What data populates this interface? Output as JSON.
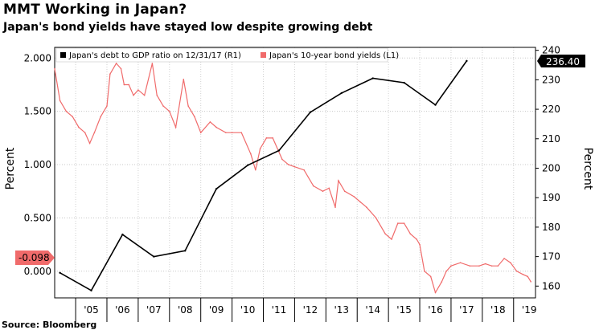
{
  "header": {
    "title": "MMT Working in Japan?",
    "subtitle": "Japan's bond yields have stayed low despite growing debt"
  },
  "footer": {
    "source": "Source: Bloomberg"
  },
  "chart_data": {
    "type": "line",
    "title": "MMT Working in Japan?",
    "subtitle": "Japan's bond yields have stayed low despite growing debt",
    "x_categories": [
      "'05",
      "'06",
      "'07",
      "'08",
      "'09",
      "'10",
      "'11",
      "'12",
      "'13",
      "'14",
      "'15",
      "'16",
      "'17",
      "'18",
      "'19"
    ],
    "xlim": [
      2004.33,
      2019.7
    ],
    "y_left": {
      "label": "Percent",
      "ticks": [
        "2.000",
        "1.500",
        "1.000",
        "0.500",
        "0.000"
      ],
      "ylim": [
        -0.25,
        2.1
      ]
    },
    "y_right": {
      "label": "Percent",
      "ticks": [
        "240",
        "230",
        "220",
        "210",
        "200",
        "190",
        "180",
        "170",
        "160"
      ],
      "ylim": [
        156,
        241
      ]
    },
    "legend": [
      {
        "label": "Japan's debt to GDP ratio on 12/31/17 (R1)",
        "color": "#000000"
      },
      {
        "label": "Japan's 10-year bond yields (L1)",
        "color": "#f06b6b"
      }
    ],
    "last_value_labels": {
      "debt": "236.40",
      "yield": "-0.098"
    },
    "series": [
      {
        "name": "Japan's debt to GDP ratio on 12/31/17 (R1)",
        "axis": "right",
        "color": "#000000",
        "x": [
          2004.5,
          2005.5,
          2006.5,
          2007.5,
          2008.5,
          2009.5,
          2010.5,
          2011.5,
          2012.5,
          2013.5,
          2014.5,
          2015.5,
          2016.5,
          2017.5
        ],
        "y": [
          164.5,
          158.5,
          177.5,
          170.0,
          172.0,
          193.0,
          201.0,
          206.0,
          219.0,
          225.5,
          230.5,
          229.0,
          221.5,
          236.4
        ]
      },
      {
        "name": "Japan's 10-year bond yields (L1)",
        "axis": "left",
        "color": "#f06b6b",
        "x": [
          2004.33,
          2004.5,
          2004.7,
          2004.9,
          2005.1,
          2005.3,
          2005.45,
          2005.6,
          2005.8,
          2006.0,
          2006.1,
          2006.3,
          2006.45,
          2006.55,
          2006.7,
          2006.85,
          2007.0,
          2007.2,
          2007.45,
          2007.6,
          2007.8,
          2008.0,
          2008.2,
          2008.45,
          2008.6,
          2008.8,
          2009.0,
          2009.3,
          2009.5,
          2009.8,
          2010.0,
          2010.3,
          2010.6,
          2010.75,
          2010.9,
          2011.1,
          2011.3,
          2011.6,
          2011.8,
          2012.0,
          2012.3,
          2012.6,
          2012.9,
          2013.1,
          2013.3,
          2013.4,
          2013.6,
          2013.9,
          2014.1,
          2014.3,
          2014.6,
          2014.9,
          2015.1,
          2015.3,
          2015.5,
          2015.7,
          2015.9,
          2016.0,
          2016.15,
          2016.35,
          2016.5,
          2016.7,
          2016.85,
          2017.0,
          2017.3,
          2017.6,
          2017.9,
          2018.1,
          2018.3,
          2018.5,
          2018.7,
          2018.9,
          2019.1,
          2019.3,
          2019.45,
          2019.55
        ],
        "y": [
          1.9,
          1.6,
          1.5,
          1.45,
          1.35,
          1.3,
          1.2,
          1.3,
          1.45,
          1.55,
          1.85,
          1.95,
          1.9,
          1.75,
          1.75,
          1.65,
          1.7,
          1.65,
          1.95,
          1.65,
          1.55,
          1.5,
          1.35,
          1.8,
          1.55,
          1.45,
          1.3,
          1.4,
          1.35,
          1.3,
          1.3,
          1.3,
          1.1,
          0.95,
          1.15,
          1.25,
          1.25,
          1.05,
          1.0,
          0.98,
          0.95,
          0.8,
          0.75,
          0.78,
          0.6,
          0.85,
          0.75,
          0.7,
          0.65,
          0.6,
          0.5,
          0.35,
          0.3,
          0.45,
          0.45,
          0.35,
          0.3,
          0.25,
          0.0,
          -0.05,
          -0.2,
          -0.1,
          0.0,
          0.05,
          0.08,
          0.05,
          0.05,
          0.07,
          0.05,
          0.05,
          0.12,
          0.08,
          0.0,
          -0.03,
          -0.05,
          -0.098
        ]
      }
    ]
  }
}
